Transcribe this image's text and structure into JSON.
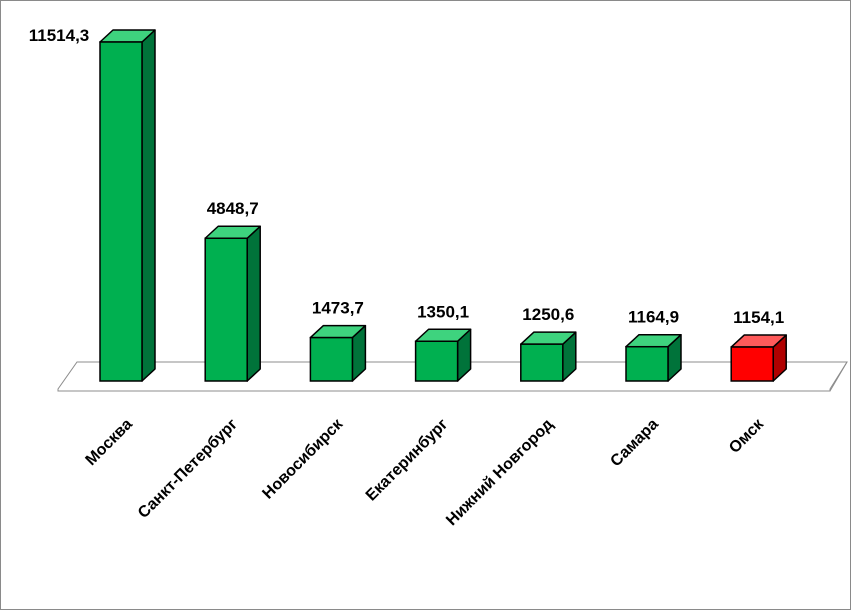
{
  "chart_data": {
    "type": "bar",
    "style": "3d-column",
    "categories": [
      "Москва",
      "Санкт-Петербург",
      "Новосибирск",
      "Екатеринбург",
      "Нижний Новгород",
      "Самара",
      "Омск"
    ],
    "values": [
      11514.3,
      4848.7,
      1473.7,
      1350.1,
      1250.6,
      1164.9,
      1154.1
    ],
    "value_labels": [
      "11514,3",
      "4848,7",
      "1473,7",
      "1350,1",
      "1250,6",
      "1164,9",
      "1154,1"
    ],
    "highlight_index": 6,
    "colors": {
      "bar": "#00b050",
      "bar_side": "#00733a",
      "bar_top": "#3ed37e",
      "highlight": "#ff0000",
      "highlight_side": "#b00000",
      "highlight_top": "#ff5a5a",
      "outline": "#000000",
      "floor": "#ffffff",
      "floor_outline": "#8c8c8c"
    },
    "grid": false,
    "legend": "none"
  }
}
